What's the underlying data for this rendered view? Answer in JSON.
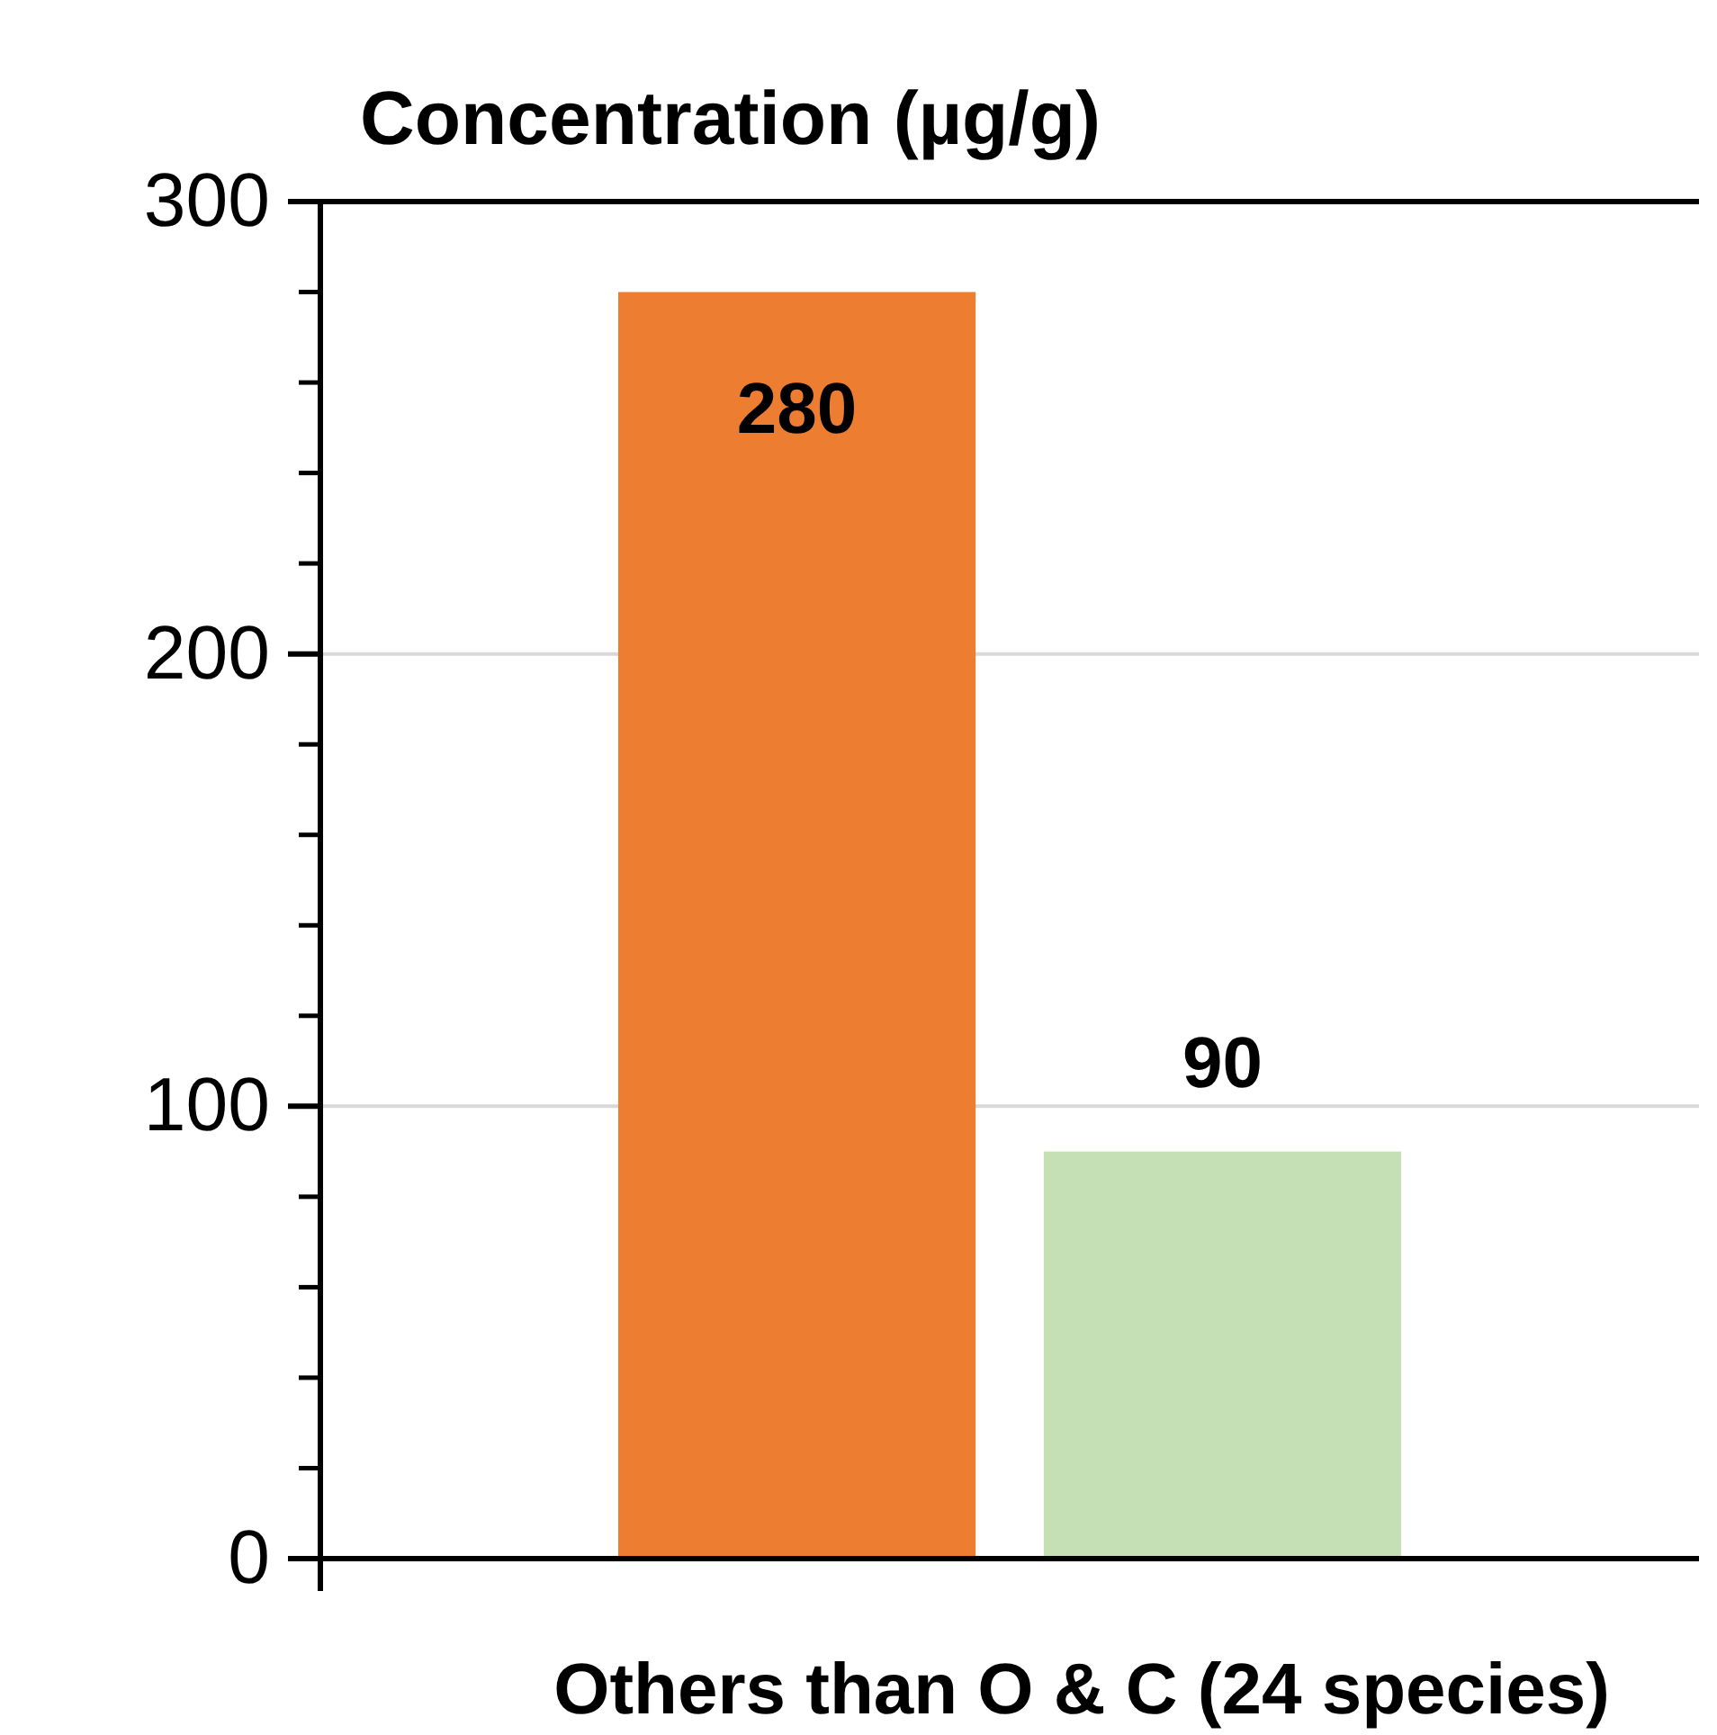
{
  "chart_data": {
    "type": "bar",
    "ylabel": "Concentration (µg/g)",
    "xlabel": "Others than O & C (24 species)",
    "categories": [
      null,
      null
    ],
    "values": [
      280,
      90
    ],
    "colors": [
      "#ed7d31",
      "#c5e0b4"
    ],
    "ylim": [
      0,
      300
    ],
    "yticks": [
      0,
      {
        "value": 20,
        "label": null
      },
      {
        "value": 40,
        "label": null
      },
      {
        "value": 60,
        "label": null
      },
      {
        "value": 80,
        "label": null
      },
      100,
      {
        "value": 120,
        "label": null
      },
      {
        "value": 140,
        "label": null
      },
      {
        "value": 160,
        "label": null
      },
      {
        "value": 180,
        "label": null
      },
      200,
      {
        "value": 220,
        "label": null
      },
      {
        "value": 240,
        "label": null
      },
      {
        "value": 260,
        "label": null
      },
      {
        "value": 280,
        "label": null
      },
      300
    ],
    "grid": "y",
    "data_labels": true
  }
}
